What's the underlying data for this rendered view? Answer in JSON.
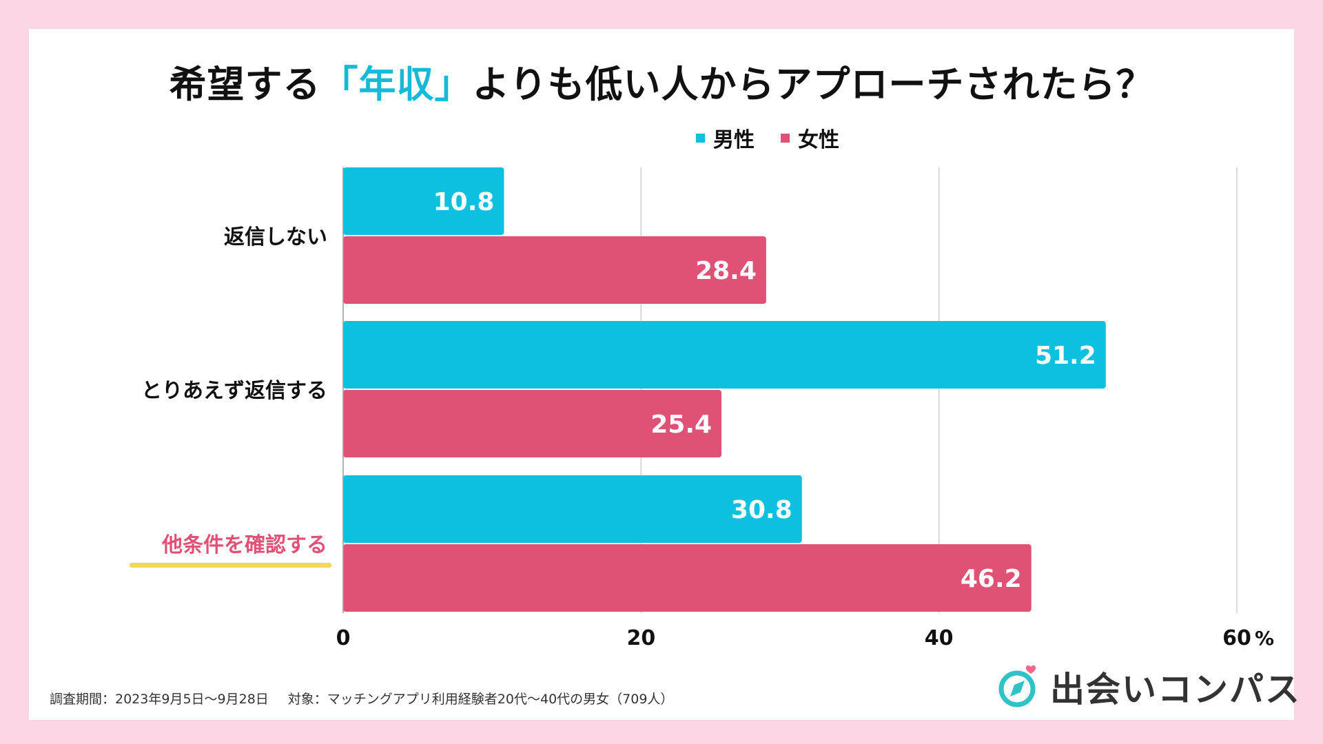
{
  "title": {
    "prefix": "希望する",
    "highlight": "「年収」",
    "suffix": "よりも低い人からアプローチされたら？"
  },
  "legend": [
    {
      "label": "男性",
      "color": "#0ec0e0"
    },
    {
      "label": "女性",
      "color": "#e05275"
    }
  ],
  "chart_data": {
    "type": "bar",
    "orientation": "horizontal",
    "title": "希望する「年収」よりも低い人からアプローチされたら？",
    "categories": [
      "返信しない",
      "とりあえず返信する",
      "他条件を確認する"
    ],
    "highlighted_category": "他条件を確認する",
    "highlight_color": "#e05275",
    "underline_color": "#f7d75a",
    "series": [
      {
        "name": "男性",
        "color": "#0ec0e0",
        "values": [
          10.8,
          51.2,
          30.8
        ]
      },
      {
        "name": "女性",
        "color": "#e05275",
        "values": [
          28.4,
          25.4,
          46.2
        ]
      }
    ],
    "value_labels": [
      [
        "10.8",
        "51.2",
        "30.8"
      ],
      [
        "28.4",
        "25.4",
        "46.2"
      ]
    ],
    "xlim": [
      0,
      60
    ],
    "xticks": [
      0,
      20,
      40,
      60
    ],
    "xtick_labels": [
      "0",
      "20",
      "40",
      "60"
    ],
    "unit": "%",
    "grid": true
  },
  "footnote": {
    "period": "調査期間：2023年9月5日〜9月28日",
    "target": "対象：マッチングアプリ利用経験者20代〜40代の男女（709人）"
  },
  "logo": {
    "text": "出会いコンパス",
    "ring_color": "#30c2c6",
    "heart_color": "#f2678c"
  }
}
